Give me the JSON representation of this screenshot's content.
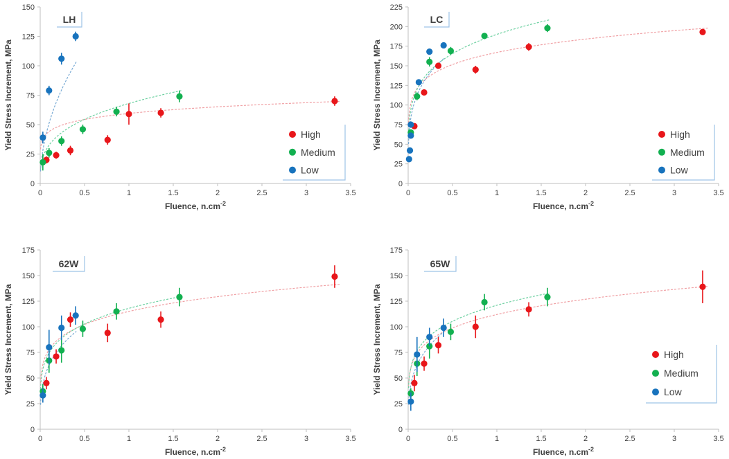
{
  "colors": {
    "High": "#e8161a",
    "Medium": "#12b050",
    "Low": "#1873bd",
    "fitHigh": "#f0a0a4",
    "fitMedium": "#6cd0a0",
    "fitLow": "#78aad4",
    "axis": "#bfbfbf",
    "text": "#404040",
    "tagBorder": "#9dc3e6"
  },
  "chart_data": [
    {
      "type": "scatter",
      "title": "LH",
      "xlabel": "Fluence, n.cm",
      "xlabel_sup": "-2",
      "ylabel": "Yield Stress Increment, MPa",
      "xlim": [
        0,
        3.5
      ],
      "ylim": [
        0,
        150
      ],
      "xticks": [
        "0",
        "0.5",
        "1",
        "1.5",
        "2",
        "2.5",
        "3",
        "3.5"
      ],
      "yticks": [
        "0",
        "25",
        "50",
        "75",
        "100",
        "125",
        "150"
      ],
      "legend": [
        "High",
        "Medium",
        "Low"
      ],
      "legend_position": "bottom-right",
      "series": [
        {
          "name": "High",
          "fit": {
            "a": 59.5,
            "b": 0.13
          },
          "points": [
            {
              "x": 0.07,
              "y": 20,
              "err": 3
            },
            {
              "x": 0.18,
              "y": 24,
              "err": 3
            },
            {
              "x": 0.34,
              "y": 28,
              "err": 4
            },
            {
              "x": 0.76,
              "y": 37,
              "err": 4
            },
            {
              "x": 1.0,
              "y": 59,
              "err": 9
            },
            {
              "x": 1.36,
              "y": 60,
              "err": 4
            },
            {
              "x": 3.32,
              "y": 70,
              "err": 4
            }
          ]
        },
        {
          "name": "Medium",
          "fit": {
            "a": 68,
            "b": 0.32
          },
          "points": [
            {
              "x": 0.03,
              "y": 18,
              "err": 7
            },
            {
              "x": 0.1,
              "y": 26,
              "err": 4
            },
            {
              "x": 0.24,
              "y": 36,
              "err": 4
            },
            {
              "x": 0.48,
              "y": 46,
              "err": 4
            },
            {
              "x": 0.86,
              "y": 61,
              "err": 4
            },
            {
              "x": 1.57,
              "y": 74,
              "err": 5
            }
          ]
        },
        {
          "name": "Low",
          "fit": {
            "a": 162,
            "b": 0.5
          },
          "points": [
            {
              "x": 0.03,
              "y": 39,
              "err": 5
            },
            {
              "x": 0.1,
              "y": 79,
              "err": 4
            },
            {
              "x": 0.24,
              "y": 106,
              "err": 5
            },
            {
              "x": 0.4,
              "y": 125,
              "err": 4
            }
          ]
        }
      ]
    },
    {
      "type": "scatter",
      "title": "LC",
      "xlabel": "Fluence, n.cm",
      "xlabel_sup": "-2",
      "ylabel": "Yield Stress Increment, MPa",
      "xlim": [
        0,
        3.5
      ],
      "ylim": [
        0,
        225
      ],
      "xticks": [
        "0",
        "0.5",
        "1",
        "1.5",
        "2",
        "2.5",
        "3",
        "3.5"
      ],
      "yticks": [
        "0",
        "25",
        "50",
        "75",
        "100",
        "125",
        "150",
        "175",
        "200",
        "225"
      ],
      "legend": [
        "High",
        "Medium",
        "Low"
      ],
      "legend_position": "bottom-right",
      "series": [
        {
          "name": "High",
          "fit": {
            "a": 167,
            "b": 0.14
          },
          "points": [
            {
              "x": 0.07,
              "y": 73,
              "err": 3
            },
            {
              "x": 0.18,
              "y": 116,
              "err": 3
            },
            {
              "x": 0.34,
              "y": 150,
              "err": 3
            },
            {
              "x": 0.76,
              "y": 145,
              "err": 5
            },
            {
              "x": 1.36,
              "y": 174,
              "err": 5
            },
            {
              "x": 3.32,
              "y": 193,
              "err": 3
            }
          ]
        },
        {
          "name": "Medium",
          "fit": {
            "a": 190,
            "b": 0.2
          },
          "points": [
            {
              "x": 0.03,
              "y": 65,
              "err": 3
            },
            {
              "x": 0.1,
              "y": 111,
              "err": 5
            },
            {
              "x": 0.24,
              "y": 155,
              "err": 6
            },
            {
              "x": 0.48,
              "y": 169,
              "err": 5
            },
            {
              "x": 0.86,
              "y": 188,
              "err": 3
            },
            {
              "x": 1.57,
              "y": 198,
              "err": 5
            }
          ]
        },
        {
          "name": "Low",
          "fit": {
            "a": 200,
            "b": 0.25
          },
          "points": [
            {
              "x": 0.01,
              "y": 31,
              "err": 2
            },
            {
              "x": 0.02,
              "y": 42,
              "err": 2
            },
            {
              "x": 0.03,
              "y": 61,
              "err": 2
            },
            {
              "x": 0.03,
              "y": 75,
              "err": 2
            },
            {
              "x": 0.12,
              "y": 129,
              "err": 2
            },
            {
              "x": 0.24,
              "y": 168,
              "err": 3
            },
            {
              "x": 0.4,
              "y": 176,
              "err": 2
            }
          ]
        }
      ]
    },
    {
      "type": "scatter",
      "title": "62W",
      "xlabel": "Fluence, n.cm",
      "xlabel_sup": "-2",
      "ylabel": "Yield Stress Increment, MPa",
      "xlim": [
        0,
        3.5
      ],
      "ylim": [
        0,
        175
      ],
      "xticks": [
        "0",
        "0.5",
        "1",
        "1.5",
        "2",
        "2.5",
        "3",
        "3.5"
      ],
      "yticks": [
        "0",
        "25",
        "50",
        "75",
        "100",
        "125",
        "150",
        "175"
      ],
      "legend": [],
      "series": [
        {
          "name": "High",
          "fit": {
            "a": 115,
            "b": 0.17
          },
          "points": [
            {
              "x": 0.07,
              "y": 45,
              "err": 6
            },
            {
              "x": 0.18,
              "y": 71,
              "err": 7
            },
            {
              "x": 0.34,
              "y": 107,
              "err": 7
            },
            {
              "x": 0.76,
              "y": 94,
              "err": 9
            },
            {
              "x": 1.36,
              "y": 107,
              "err": 8
            },
            {
              "x": 3.32,
              "y": 149,
              "err": 11
            }
          ]
        },
        {
          "name": "Medium",
          "fit": {
            "a": 118,
            "b": 0.2
          },
          "points": [
            {
              "x": 0.03,
              "y": 37,
              "err": 7
            },
            {
              "x": 0.1,
              "y": 67,
              "err": 12
            },
            {
              "x": 0.24,
              "y": 77,
              "err": 12
            },
            {
              "x": 0.48,
              "y": 98,
              "err": 8
            },
            {
              "x": 0.86,
              "y": 115,
              "err": 8
            },
            {
              "x": 1.57,
              "y": 129,
              "err": 9
            }
          ]
        },
        {
          "name": "Low",
          "fit": {
            "a": 125,
            "b": 0.3
          },
          "points": [
            {
              "x": 0.03,
              "y": 33,
              "err": 7
            },
            {
              "x": 0.1,
              "y": 80,
              "err": 17
            },
            {
              "x": 0.24,
              "y": 99,
              "err": 12
            },
            {
              "x": 0.4,
              "y": 111,
              "err": 9
            }
          ]
        }
      ]
    },
    {
      "type": "scatter",
      "title": "65W",
      "xlabel": "Fluence, n.cm",
      "xlabel_sup": "-2",
      "ylabel": "Yield Stress Increment, MPa",
      "xlim": [
        0,
        3.5
      ],
      "ylim": [
        0,
        175
      ],
      "xticks": [
        "0",
        "0.5",
        "1",
        "1.5",
        "2",
        "2.5",
        "3",
        "3.5"
      ],
      "yticks": [
        "0",
        "25",
        "50",
        "75",
        "100",
        "125",
        "150",
        "175"
      ],
      "legend": [
        "High",
        "Medium",
        "Low"
      ],
      "legend_position": "bottom-right",
      "series": [
        {
          "name": "High",
          "fit": {
            "a": 112,
            "b": 0.18
          },
          "points": [
            {
              "x": 0.07,
              "y": 45,
              "err": 8
            },
            {
              "x": 0.18,
              "y": 64,
              "err": 7
            },
            {
              "x": 0.34,
              "y": 82,
              "err": 8
            },
            {
              "x": 0.76,
              "y": 100,
              "err": 11
            },
            {
              "x": 1.36,
              "y": 117,
              "err": 7
            },
            {
              "x": 3.32,
              "y": 139,
              "err": 16
            }
          ]
        },
        {
          "name": "Medium",
          "fit": {
            "a": 121,
            "b": 0.2
          },
          "points": [
            {
              "x": 0.03,
              "y": 35,
              "err": 5
            },
            {
              "x": 0.1,
              "y": 64,
              "err": 12
            },
            {
              "x": 0.24,
              "y": 81,
              "err": 12
            },
            {
              "x": 0.48,
              "y": 95,
              "err": 8
            },
            {
              "x": 0.86,
              "y": 124,
              "err": 8
            },
            {
              "x": 1.57,
              "y": 129,
              "err": 9
            }
          ]
        },
        {
          "name": "Low",
          "fit": {
            "a": 125,
            "b": 0.3
          },
          "points": [
            {
              "x": 0.03,
              "y": 27,
              "err": 9
            },
            {
              "x": 0.1,
              "y": 73,
              "err": 17
            },
            {
              "x": 0.24,
              "y": 90,
              "err": 9
            },
            {
              "x": 0.4,
              "y": 99,
              "err": 9
            }
          ]
        }
      ]
    }
  ]
}
